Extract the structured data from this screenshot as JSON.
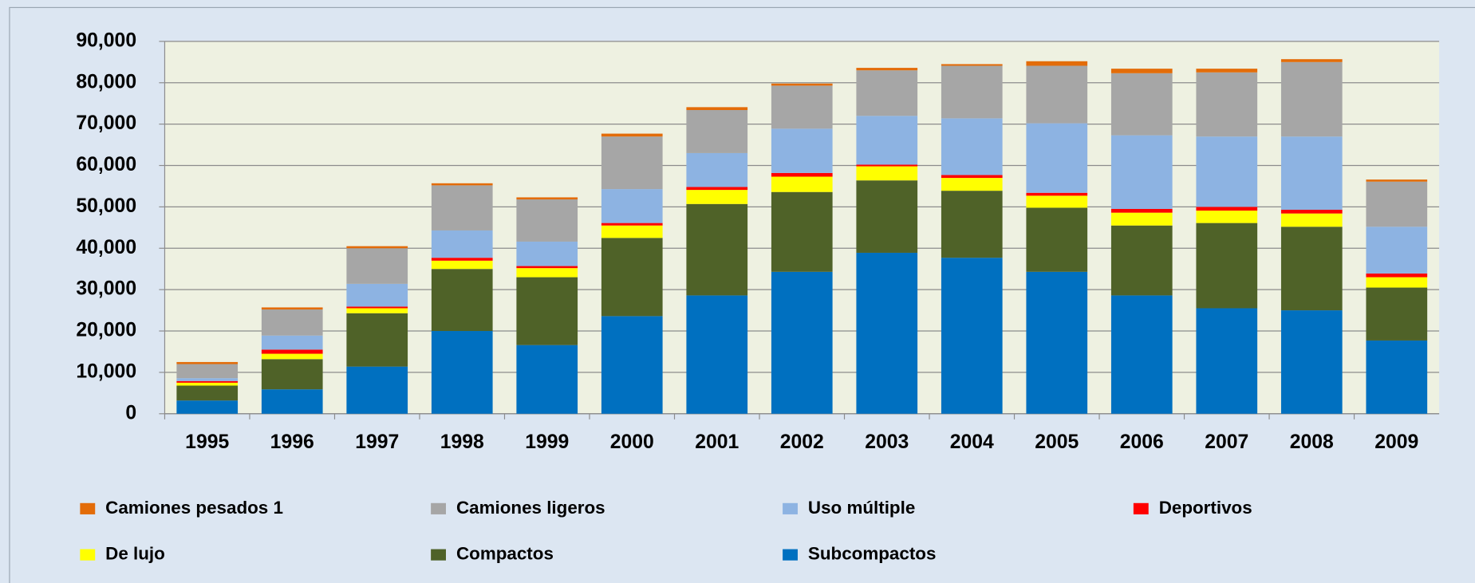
{
  "chart_data": {
    "type": "stacked-bar",
    "categories": [
      "1995",
      "1996",
      "1997",
      "1998",
      "1999",
      "2000",
      "2001",
      "2002",
      "2003",
      "2004",
      "2005",
      "2006",
      "2007",
      "2008",
      "2009"
    ],
    "series": [
      {
        "name": "Camiones pesados 1",
        "color": "#e36c09",
        "values": [
          500,
          500,
          500,
          500,
          500,
          700,
          700,
          500,
          600,
          400,
          1100,
          1100,
          900,
          700,
          500
        ]
      },
      {
        "name": "Camiones ligeros",
        "color": "#a6a6a6",
        "values": [
          3400,
          6300,
          8600,
          10900,
          10200,
          12700,
          10400,
          10400,
          11000,
          12700,
          13900,
          15000,
          15500,
          18000,
          10900
        ]
      },
      {
        "name": "Uso múltiple",
        "color": "#8db3e2",
        "values": [
          700,
          3400,
          5500,
          6600,
          5900,
          8200,
          8200,
          10700,
          11800,
          13700,
          16800,
          17800,
          17000,
          17700,
          11300
        ]
      },
      {
        "name": "Deportivos",
        "color": "#ff0000",
        "values": [
          400,
          1000,
          400,
          700,
          500,
          600,
          700,
          900,
          400,
          700,
          700,
          900,
          900,
          900,
          900
        ]
      },
      {
        "name": "De lujo",
        "color": "#ffff00",
        "values": [
          700,
          1300,
          1200,
          2000,
          2200,
          3000,
          3400,
          3700,
          3400,
          3100,
          2900,
          3100,
          3000,
          3200,
          2500
        ]
      },
      {
        "name": "Compactos",
        "color": "#4f6228",
        "values": [
          3600,
          7300,
          12900,
          15000,
          16400,
          18900,
          22100,
          19300,
          17500,
          16200,
          15500,
          16900,
          20600,
          20200,
          12800
        ]
      },
      {
        "name": "Subcompactos",
        "color": "#0070c0",
        "values": [
          3200,
          5900,
          11400,
          20000,
          16600,
          23600,
          28600,
          34300,
          38900,
          37700,
          34300,
          28600,
          25500,
          25000,
          17700
        ]
      }
    ],
    "ylim": [
      0,
      90000
    ],
    "yticks": [
      0,
      {
        "value": 10000,
        "label": "10,000"
      },
      {
        "value": 20000,
        "label": "20,000"
      },
      {
        "value": 30000,
        "label": "30,000"
      },
      {
        "value": 40000,
        "label": "40,000"
      },
      {
        "value": 50000,
        "label": "50,000"
      },
      {
        "value": 60000,
        "label": "60,000"
      },
      {
        "value": 70000,
        "label": "70,000"
      },
      {
        "value": 80000,
        "label": "80,000"
      },
      {
        "value": 90000,
        "label": "90,000"
      }
    ],
    "grid": true
  }
}
